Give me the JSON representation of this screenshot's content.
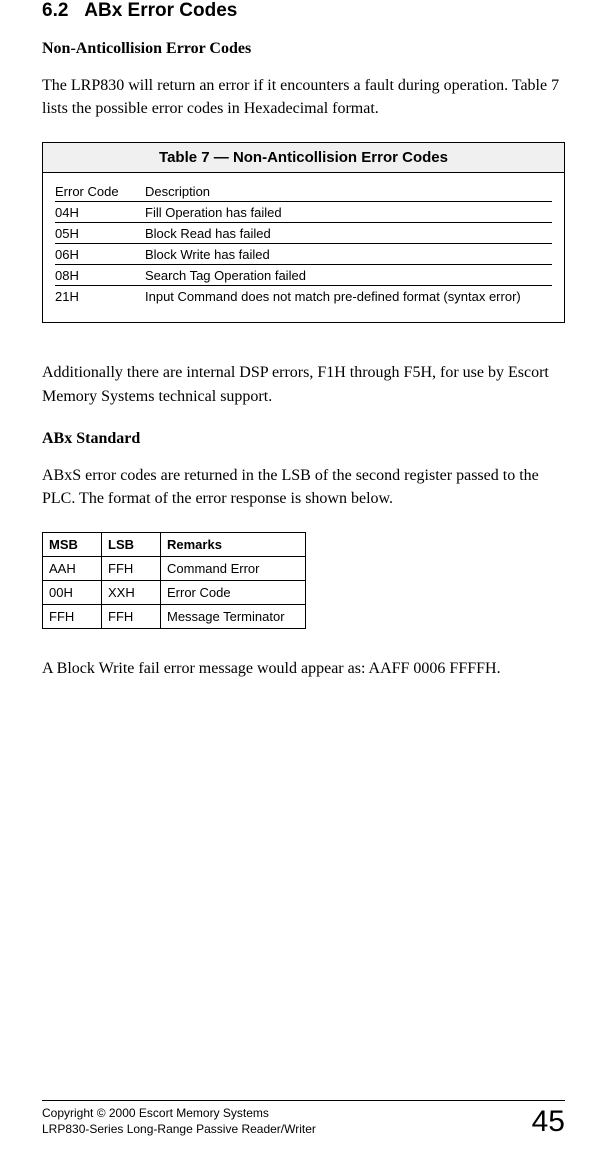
{
  "section": {
    "number": "6.2",
    "title": "ABx Error Codes"
  },
  "sub1_title": "Non-Anticollision Error Codes",
  "intro": "The LRP830 will return an error if it encounters a fault during operation. Table 7 lists the possible error codes in Hexadecimal format.",
  "table7": {
    "caption": "Table 7 — Non-Anticollision Error Codes",
    "header_code": "Error Code",
    "header_desc": "Description",
    "rows": [
      {
        "code": "04H",
        "desc": "Fill Operation has failed"
      },
      {
        "code": "05H",
        "desc": "Block Read has failed"
      },
      {
        "code": "06H",
        "desc": "Block Write has failed"
      },
      {
        "code": "08H",
        "desc": "Search Tag Operation failed"
      },
      {
        "code": "21H",
        "desc": "Input Command does not match pre-defined format (syntax error)"
      }
    ]
  },
  "para2": "Additionally there are internal DSP errors, F1H through F5H, for use by Escort Memory Systems technical support.",
  "sub2_title": "ABx Standard",
  "para3": "ABxS error codes are returned in the LSB of the second register passed to the PLC.  The format of the error response is shown below.",
  "table2": {
    "headers": {
      "msb": "MSB",
      "lsb": "LSB",
      "remarks": "Remarks"
    },
    "rows": [
      {
        "msb": "AAH",
        "lsb": "FFH",
        "remarks": "Command Error"
      },
      {
        "msb": "00H",
        "lsb": "XXH",
        "remarks": "Error Code"
      },
      {
        "msb": "FFH",
        "lsb": "FFH",
        "remarks": "Message Terminator"
      }
    ]
  },
  "para4": "A Block Write fail error message would appear as: AAFF 0006 FFFFH.",
  "footer": {
    "line1": "Copyright © 2000 Escort Memory Systems",
    "line2": "LRP830-Series Long-Range Passive Reader/Writer",
    "page": "45"
  }
}
